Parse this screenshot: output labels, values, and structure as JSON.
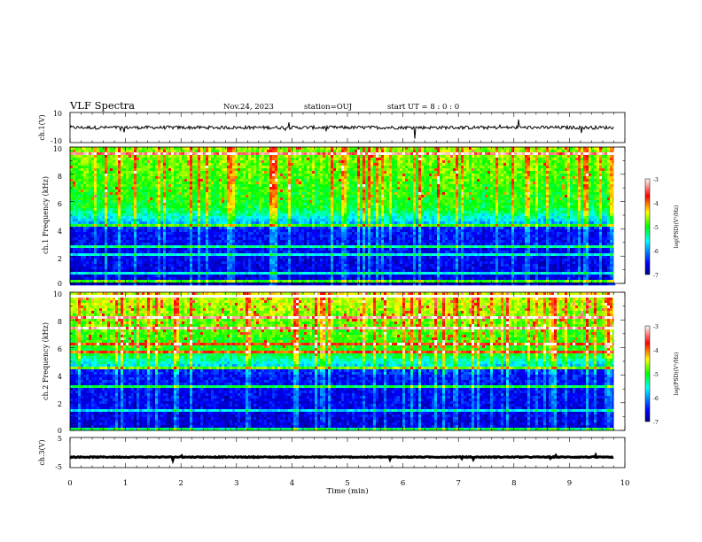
{
  "header": {
    "title": "VLF Spectra",
    "date": "Nov.24, 2023",
    "station": "station=OUJ",
    "start": "start UT = 8 : 0 : 0"
  },
  "chart_data": [
    {
      "type": "line",
      "name": "waveform-ch1",
      "ylabel": "ch.1(V)",
      "ylim": [
        -10,
        10
      ],
      "yticks": [
        "10",
        "-10"
      ],
      "xlim": [
        0,
        10
      ],
      "trace_level": 0,
      "trace_end_min": 9.8
    },
    {
      "type": "heatmap",
      "name": "spectrogram-ch1",
      "ylabel": "ch.1 Frequency (kHz)",
      "ylim": [
        0,
        10
      ],
      "yticks": [
        "0",
        "2",
        "4",
        "6",
        "8",
        "10"
      ],
      "xlim": [
        0,
        10
      ],
      "data_end_min": 9.8,
      "colorbar": {
        "label": "log(PSD)(V²/Hz)",
        "range": [
          -7,
          -3
        ],
        "ticks": [
          "-3",
          "-4",
          "-5",
          "-6",
          "-7"
        ]
      }
    },
    {
      "type": "heatmap",
      "name": "spectrogram-ch2",
      "ylabel": "ch.2 Frequency (kHz)",
      "ylim": [
        0,
        10
      ],
      "yticks": [
        "0",
        "2",
        "4",
        "6",
        "8",
        "10"
      ],
      "xlim": [
        0,
        10
      ],
      "data_end_min": 9.8,
      "colorbar": {
        "label": "log(PSD)(V²/Hz)",
        "range": [
          -7,
          -3
        ],
        "ticks": [
          "-3",
          "-4",
          "-5",
          "-6",
          "-7"
        ]
      }
    },
    {
      "type": "line",
      "name": "waveform-ch3",
      "ylabel": "ch.3(V)",
      "ylim": [
        -5,
        5
      ],
      "yticks": [
        "5",
        "-5"
      ],
      "xlim": [
        0,
        10
      ],
      "trace_level": -1.5,
      "trace_end_min": 9.8
    }
  ],
  "xaxis": {
    "label": "Time (min)",
    "ticks": [
      "0",
      "1",
      "2",
      "3",
      "4",
      "5",
      "6",
      "7",
      "8",
      "9",
      "10"
    ]
  },
  "colors": {
    "low": "#000080",
    "mid": "#00ff00",
    "high": "#ff0000"
  }
}
